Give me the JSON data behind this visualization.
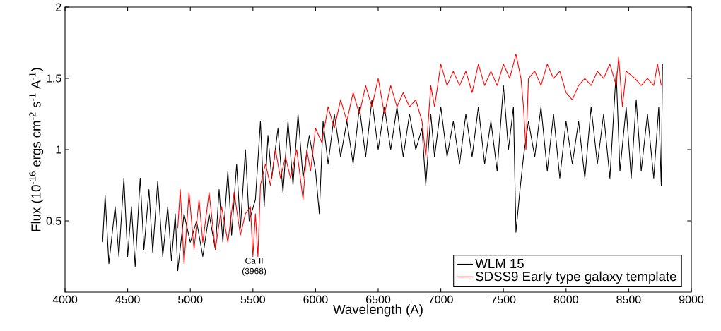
{
  "chart_data": {
    "type": "line",
    "xlabel": "Wavelength (A)",
    "ylabel": "Flux (10$^{-16}$ ergs  cm$^{-2}$ s$^{-1}$ A$^{-1}$)",
    "xlim": [
      4000,
      9000
    ],
    "ylim": [
      0,
      2
    ],
    "xticks": [
      4000,
      4500,
      5000,
      5500,
      6000,
      6500,
      7000,
      7500,
      8000,
      8500,
      9000
    ],
    "yticks": [
      0.5,
      1,
      1.5,
      2
    ],
    "legend": "bottom right",
    "series": [
      {
        "name": "WLM 15",
        "color": "#000000",
        "x": [
          4300,
          4320,
          4350,
          4400,
          4430,
          4470,
          4500,
          4530,
          4560,
          4600,
          4630,
          4670,
          4700,
          4740,
          4780,
          4820,
          4850,
          4880,
          4900,
          4950,
          5000,
          5050,
          5100,
          5150,
          5200,
          5230,
          5260,
          5300,
          5330,
          5370,
          5400,
          5440,
          5470,
          5520,
          5560,
          5590,
          5620,
          5650,
          5700,
          5740,
          5780,
          5820,
          5860,
          5900,
          5950,
          6000,
          6030,
          6060,
          6100,
          6150,
          6200,
          6250,
          6300,
          6350,
          6400,
          6450,
          6500,
          6550,
          6600,
          6650,
          6700,
          6750,
          6800,
          6850,
          6880,
          6920,
          6950,
          7000,
          7050,
          7100,
          7150,
          7200,
          7250,
          7300,
          7350,
          7400,
          7450,
          7500,
          7540,
          7580,
          7600,
          7630,
          7660,
          7700,
          7750,
          7800,
          7850,
          7900,
          7950,
          8000,
          8050,
          8100,
          8150,
          8200,
          8250,
          8300,
          8350,
          8400,
          8430,
          8480,
          8520,
          8560,
          8600,
          8650,
          8700,
          8740,
          8760,
          8770
        ],
        "values": [
          0.35,
          0.68,
          0.2,
          0.6,
          0.25,
          0.8,
          0.25,
          0.6,
          0.18,
          0.8,
          0.3,
          0.72,
          0.28,
          0.78,
          0.25,
          0.6,
          0.22,
          0.55,
          0.15,
          0.55,
          0.35,
          0.5,
          0.25,
          0.55,
          0.3,
          0.72,
          0.35,
          0.85,
          0.4,
          0.9,
          0.45,
          1.0,
          0.5,
          0.65,
          1.2,
          0.6,
          1.1,
          0.8,
          1.15,
          0.7,
          1.2,
          0.75,
          1.25,
          0.8,
          1.1,
          0.85,
          0.55,
          1.2,
          0.9,
          1.25,
          0.95,
          1.2,
          0.9,
          1.3,
          0.95,
          1.35,
          1.0,
          1.3,
          1.0,
          1.3,
          0.95,
          1.25,
          1.0,
          1.15,
          0.75,
          1.25,
          0.95,
          1.3,
          0.95,
          1.2,
          0.9,
          1.25,
          0.95,
          1.3,
          0.9,
          1.2,
          0.85,
          1.45,
          1.0,
          1.3,
          0.42,
          0.7,
          0.95,
          1.2,
          0.95,
          1.3,
          0.85,
          1.25,
          0.8,
          1.2,
          0.9,
          1.2,
          0.8,
          1.3,
          0.9,
          1.25,
          0.8,
          1.55,
          0.85,
          1.3,
          0.8,
          1.35,
          0.85,
          1.25,
          0.8,
          1.3,
          0.75,
          1.6
        ]
      },
      {
        "name": "SDSS9 Early type galaxy template",
        "color": "#ff0000",
        "x": [
          4900,
          4920,
          4950,
          4990,
          5030,
          5070,
          5100,
          5150,
          5200,
          5250,
          5300,
          5350,
          5400,
          5440,
          5480,
          5500,
          5520,
          5540,
          5560,
          5600,
          5640,
          5680,
          5720,
          5760,
          5800,
          5850,
          5900,
          5930,
          5960,
          6000,
          6050,
          6100,
          6150,
          6200,
          6250,
          6300,
          6350,
          6400,
          6450,
          6500,
          6550,
          6600,
          6650,
          6700,
          6750,
          6800,
          6850,
          6880,
          6920,
          6950,
          7000,
          7050,
          7100,
          7150,
          7200,
          7250,
          7300,
          7350,
          7400,
          7450,
          7500,
          7550,
          7600,
          7640,
          7660,
          7680,
          7700,
          7750,
          7800,
          7850,
          7900,
          7950,
          8000,
          8050,
          8100,
          8150,
          8200,
          8250,
          8300,
          8350,
          8400,
          8420,
          8450,
          8480,
          8550,
          8600,
          8650,
          8700,
          8730,
          8760
        ],
        "values": [
          0.45,
          0.72,
          0.2,
          0.7,
          0.3,
          0.65,
          0.35,
          0.7,
          0.3,
          0.6,
          0.35,
          0.7,
          0.4,
          0.55,
          0.6,
          0.25,
          0.55,
          0.25,
          0.75,
          0.9,
          0.75,
          1.0,
          0.8,
          0.95,
          0.8,
          1.0,
          0.65,
          1.0,
          0.85,
          1.15,
          1.05,
          1.3,
          1.15,
          1.35,
          1.2,
          1.4,
          1.25,
          1.45,
          1.3,
          1.5,
          1.25,
          1.45,
          1.3,
          1.4,
          1.3,
          1.35,
          1.2,
          0.95,
          1.45,
          1.3,
          1.6,
          1.45,
          1.55,
          1.45,
          1.55,
          1.4,
          1.6,
          1.45,
          1.55,
          1.45,
          1.6,
          1.5,
          1.67,
          1.5,
          1.3,
          1.0,
          1.5,
          1.55,
          1.45,
          1.6,
          1.5,
          1.55,
          1.4,
          1.35,
          1.45,
          1.5,
          1.45,
          1.55,
          1.5,
          1.6,
          1.45,
          1.65,
          1.3,
          1.55,
          1.5,
          1.45,
          1.5,
          1.45,
          1.6,
          1.45
        ]
      }
    ],
    "annotations": [
      {
        "text": "Ca II (3968)",
        "x": 5510,
        "y": 0.25
      }
    ]
  }
}
